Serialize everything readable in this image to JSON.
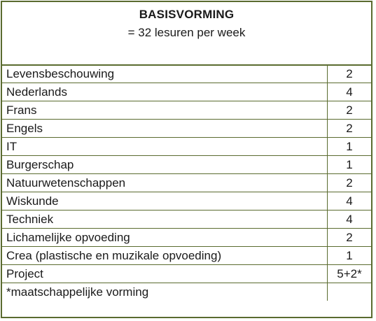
{
  "header": {
    "title": "BASISVORMING",
    "subtitle": "= 32 lesuren per week"
  },
  "rows": [
    {
      "subject": "Levensbeschouwing",
      "hours": "2"
    },
    {
      "subject": "Nederlands",
      "hours": "4"
    },
    {
      "subject": "Frans",
      "hours": "2"
    },
    {
      "subject": "Engels",
      "hours": "2"
    },
    {
      "subject": "IT",
      "hours": "1"
    },
    {
      "subject": "Burgerschap",
      "hours": "1"
    },
    {
      "subject": "Natuurwetenschappen",
      "hours": "2"
    },
    {
      "subject": "Wiskunde",
      "hours": "4"
    },
    {
      "subject": "Techniek",
      "hours": "4"
    },
    {
      "subject": "Lichamelijke opvoeding",
      "hours": "2"
    },
    {
      "subject": "Crea (plastische en muzikale opvoeding)",
      "hours": "1"
    },
    {
      "subject": "Project",
      "hours": "5+2*"
    },
    {
      "subject": "*maatschappelijke vorming",
      "hours": ""
    }
  ],
  "colors": {
    "border": "#5a6b2f",
    "text": "#1a1a1a",
    "background": "#ffffff"
  }
}
